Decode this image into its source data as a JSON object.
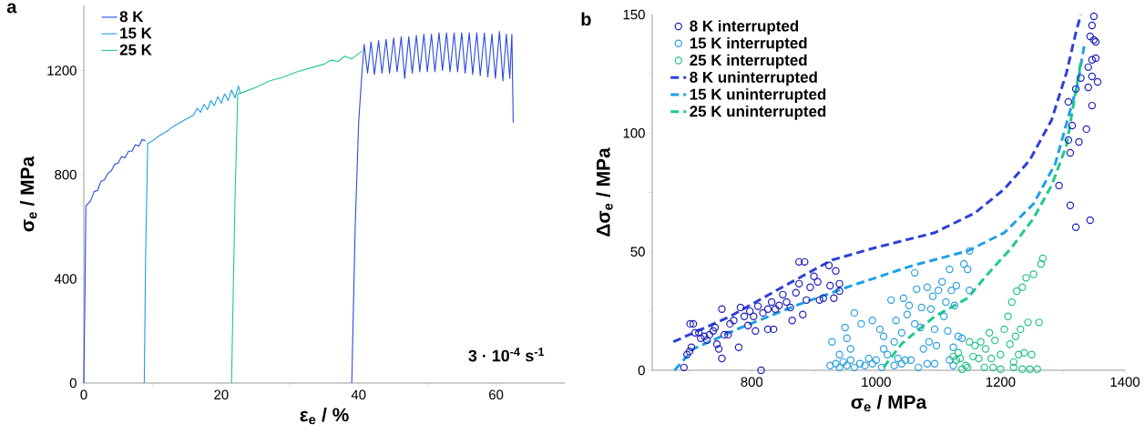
{
  "chart_data": [
    {
      "type": "line",
      "title": "a",
      "xlabel": "ε$_{e}$ / %",
      "ylabel": "σ$_{e}$ / MPa",
      "xlim": [
        0,
        70
      ],
      "ylim": [
        0,
        1450
      ],
      "xticks": [
        0,
        {
          "value": 10,
          "label": null
        },
        20,
        {
          "value": 30,
          "label": null
        },
        40,
        {
          "value": 50,
          "label": null
        },
        60
      ],
      "yticks": [
        0,
        400,
        800,
        1200
      ],
      "legend": "top left",
      "marker": "none",
      "line_style": "solid",
      "annotations": [
        "3 · 10$^{-4}$ s$^{-1}$"
      ],
      "series": [
        {
          "name": "8 K",
          "color": "#2a4ae0",
          "x": [
            0,
            0.15,
            0.3,
            1,
            1.5,
            2,
            2.5,
            3,
            3.5,
            4,
            4.5,
            5,
            5.5,
            6,
            6.5,
            7,
            7.5,
            8,
            8.5,
            9,
            null,
            39,
            39.5,
            40,
            40.5,
            40.8,
            41.3,
            41.8,
            42.3,
            42.9,
            43.4,
            44.0,
            44.5,
            45.1,
            45.6,
            46.2,
            46.7,
            47.3,
            47.8,
            48.4,
            48.9,
            49.5,
            50.0,
            50.6,
            51.1,
            51.7,
            52.2,
            52.8,
            53.3,
            53.9,
            54.4,
            55.0,
            55.5,
            56.1,
            56.6,
            57.2,
            57.7,
            58.3,
            58.8,
            59.4,
            59.9,
            60.5,
            61.0,
            61.5,
            62.0,
            62.3,
            62.5
          ],
          "values": [
            0,
            300,
            680,
            700,
            735,
            740,
            775,
            780,
            805,
            815,
            840,
            845,
            870,
            865,
            890,
            890,
            915,
            910,
            935,
            930,
            null,
            0,
            600,
            1000,
            1200,
            1300,
            1190,
            1310,
            1185,
            1315,
            1190,
            1320,
            1190,
            1325,
            1195,
            1330,
            1170,
            1330,
            1190,
            1335,
            1195,
            1340,
            1195,
            1340,
            1195,
            1345,
            1200,
            1345,
            1195,
            1345,
            1195,
            1345,
            1190,
            1345,
            1185,
            1345,
            1180,
            1345,
            1175,
            1340,
            1170,
            1350,
            1160,
            1340,
            1170,
            1340,
            1000
          ]
        },
        {
          "name": "15 K",
          "color": "#1e9fe8",
          "x": [
            8.8,
            9.0,
            9.3,
            10,
            11,
            12,
            13,
            14,
            15,
            16,
            16.5,
            17,
            17.5,
            18,
            18.5,
            19,
            19.5,
            20,
            20.5,
            21,
            21.5,
            22,
            22.5,
            22.8
          ],
          "values": [
            0,
            500,
            920,
            930,
            950,
            965,
            985,
            1000,
            1015,
            1030,
            1055,
            1040,
            1070,
            1050,
            1085,
            1065,
            1100,
            1075,
            1110,
            1085,
            1125,
            1095,
            1140,
            1110
          ]
        },
        {
          "name": "25 K",
          "color": "#1fc98a",
          "x": [
            21.5,
            22,
            22.4,
            23,
            25,
            27,
            29,
            31,
            33,
            35,
            36,
            37,
            38,
            39,
            40,
            40.5
          ],
          "values": [
            0,
            700,
            1110,
            1115,
            1135,
            1160,
            1175,
            1195,
            1210,
            1225,
            1240,
            1235,
            1255,
            1245,
            1265,
            1275
          ]
        }
      ]
    },
    {
      "type": "scatter",
      "title": "b",
      "xlabel": "σ$_{e}$ / MPa",
      "ylabel": "Δσ$_{e}$ / MPa",
      "xlim": [
        640,
        1400
      ],
      "ylim": [
        0,
        150
      ],
      "xticks": [
        {
          "value": 700,
          "label": null
        },
        800,
        {
          "value": 900,
          "label": null
        },
        1000,
        {
          "value": 1100,
          "label": null
        },
        1200,
        {
          "value": 1300,
          "label": null
        },
        1400
      ],
      "yticks": [
        0,
        {
          "value": 25,
          "label": null
        },
        50,
        {
          "value": 75,
          "label": null
        },
        100,
        {
          "value": 125,
          "label": null
        },
        150
      ],
      "legend": "top left",
      "series": [
        {
          "name": "8 K interrupted",
          "type": "scatter",
          "marker": "circle",
          "color": "#1f1fb8",
          "x": [
            691,
            696,
            700,
            703,
            701,
            706,
            709,
            715,
            718,
            724,
            728,
            732,
            738,
            741,
            744,
            747,
            752,
            752,
            756,
            762,
            765,
            771,
            779,
            782,
            788,
            794,
            797,
            803,
            806,
            810,
            815,
            818,
            826,
            826,
            832,
            835,
            838,
            844,
            850,
            856,
            862,
            865,
            871,
            876,
            876,
            885,
            882,
            888,
            894,
            900,
            906,
            909,
            915,
            924,
            926,
            932,
            935,
            941,
            941,
            1294,
            1312,
            1321,
            1344,
            1309,
            1312,
            1326,
            1315,
            1338,
            1347,
            1309,
            1321,
            1329,
            1341,
            1347,
            1356,
            1341,
            1347,
            1353,
            1344,
            1350,
            1353,
            1347,
            1350
          ],
          "values": [
            1.2,
            6.6,
            8,
            9.7,
            19.6,
            19.6,
            15.8,
            15.8,
            13.5,
            14.3,
            12.7,
            15,
            16.6,
            18,
            11,
            9,
            5,
            25.8,
            15,
            15,
            19.6,
            21,
            9.7,
            26.5,
            22.7,
            18.9,
            24.9,
            22.7,
            16.6,
            27,
            0,
            24.2,
            25.8,
            17.3,
            28.8,
            17.3,
            25.8,
            27.3,
            31.9,
            28.8,
            26.5,
            21,
            32.7,
            36.5,
            45.7,
            45.7,
            23.5,
            29.6,
            35,
            39.6,
            37.3,
            29.6,
            30.4,
            44.2,
            35.7,
            30.4,
            41.9,
            36.5,
            33.4,
            77.9,
            69.5,
            60.3,
            63.3,
            97.1,
            91.7,
            96.3,
            103.2,
            101.7,
            111.6,
            113.2,
            118.6,
            123.2,
            119.3,
            123.9,
            121.6,
            127.8,
            130.9,
            131.6,
            140.8,
            139.3,
            138.5,
            145.4,
            149.2
          ]
        },
        {
          "name": "15 K interrupted",
          "type": "scatter",
          "marker": "circle",
          "color": "#2a9fe0",
          "x": [
            929,
            926,
            935,
            941,
            947,
            953,
            959,
            965,
            974,
            982,
            994,
            1000,
            1009,
            953,
            965,
            950,
            959,
            976,
            994,
            1006,
            1012,
            1012,
            1018,
            1024,
            1029,
            1032,
            1035,
            1041,
            1044,
            1050,
            1053,
            1056,
            1062,
            1062,
            1065,
            1068,
            1071,
            1073,
            1076,
            1082,
            1085,
            1088,
            1091,
            1094,
            1097,
            1100,
            1106,
            1109,
            1112,
            1115,
            1118,
            1121,
            1124,
            1126,
            1129,
            1132,
            1138,
            1141,
            1147,
            1150,
            1150,
            1118,
            1082,
            1041,
            1047,
            1094,
            1124,
            1029,
            988,
            941
          ],
          "values": [
            12,
            2,
            2.8,
            1.2,
            3.5,
            2,
            4.3,
            1.2,
            2.8,
            2,
            2.8,
            4.3,
            1.2,
            13.5,
            24.2,
            18,
            9,
            19.6,
            21,
            17.3,
            14.3,
            9,
            6.6,
            29.6,
            12,
            21,
            5,
            15.8,
            30.4,
            23.5,
            27.3,
            4.3,
            41.1,
            19.6,
            34.2,
            1.2,
            18,
            26.5,
            9,
            35,
            12,
            25.8,
            31.2,
            17.3,
            10.4,
            33.7,
            37.3,
            22.7,
            28.8,
            16.6,
            42.6,
            33.7,
            9.7,
            27.3,
            35.7,
            14.3,
            13.5,
            44.9,
            42.6,
            33.7,
            50.3,
            4.3,
            2.8,
            2.8,
            4.3,
            2.8,
            2,
            2,
            5,
            6.6
          ]
        },
        {
          "name": "25 K interrupted",
          "type": "scatter",
          "marker": "circle",
          "color": "#22c484",
          "x": [
            1124,
            1129,
            1132,
            1138,
            1144,
            1150,
            1159,
            1156,
            1165,
            1168,
            1174,
            1176,
            1182,
            1185,
            1191,
            1200,
            1200,
            1206,
            1212,
            1215,
            1218,
            1221,
            1224,
            1226,
            1229,
            1232,
            1235,
            1238,
            1241,
            1244,
            1247,
            1250,
            1253,
            1259,
            1262,
            1265,
            1268,
            1188,
            1221,
            1235,
            1135,
            1147
          ],
          "values": [
            5.8,
            4.3,
            7.4,
            0.5,
            2,
            12,
            10.4,
            5.8,
            5,
            12,
            1.2,
            9,
            15.8,
            5,
            12.6,
            6.6,
            0.5,
            17.3,
            22.7,
            11,
            28.8,
            3.5,
            14.3,
            33.4,
            6.6,
            17.3,
            35,
            7.4,
            39,
            20.2,
            0.5,
            6.6,
            40.5,
            0.5,
            20.2,
            44.9,
            47.2,
            1.2,
            1.2,
            0.5,
            5,
            1.2
          ]
        },
        {
          "name": "8 K uninterrupted",
          "type": "line",
          "marker": "none",
          "line_style": "dashed",
          "color": "#2f40d8",
          "x": [
            674,
            765,
            859,
            929,
            1000,
            1094,
            1159,
            1206,
            1247,
            1282,
            1306,
            1321,
            1329
          ],
          "values": [
            12,
            22.7,
            36.5,
            46.5,
            51.8,
            58,
            66.4,
            76.4,
            88.7,
            105.5,
            125.5,
            142.3,
            150
          ]
        },
        {
          "name": "15 K uninterrupted",
          "type": "line",
          "marker": "none",
          "line_style": "dashed",
          "color": "#1ea0e6",
          "x": [
            676,
            706,
            776,
            871,
            953,
            1059,
            1147,
            1206,
            1253,
            1288,
            1306,
            1324,
            1335
          ],
          "values": [
            0,
            9,
            17.3,
            27.3,
            35,
            44.2,
            50.3,
            58,
            70.2,
            87.1,
            104,
            120.9,
            137.7
          ]
        },
        {
          "name": "25 K uninterrupted",
          "type": "line",
          "marker": "none",
          "line_style": "dashed",
          "color": "#1fc98a",
          "x": [
            1012,
            1041,
            1094,
            1147,
            1176,
            1218,
            1253,
            1282,
            1306,
            1329
          ],
          "values": [
            1.2,
            11.2,
            22.7,
            30.4,
            39.6,
            51.8,
            64.1,
            77.9,
            94.8,
            130
          ]
        }
      ]
    }
  ]
}
